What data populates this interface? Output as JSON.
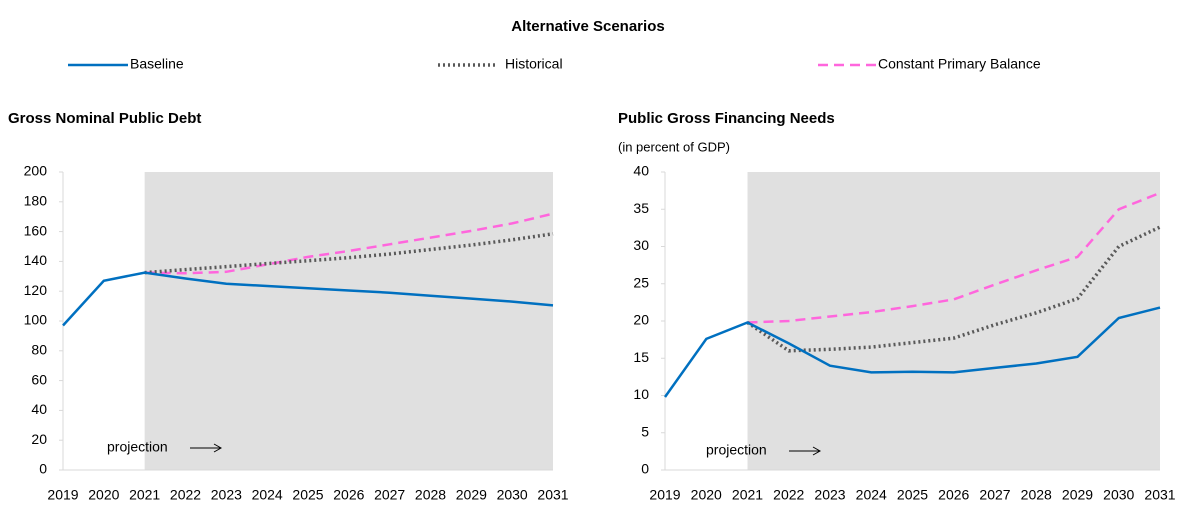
{
  "title": "Alternative Scenarios",
  "chart_data": [
    {
      "type": "line",
      "title": "Gross Nominal Public Debt",
      "x": [
        "2019",
        "2020",
        "2021",
        "2022",
        "2023",
        "2024",
        "2025",
        "2026",
        "2027",
        "2028",
        "2029",
        "2030",
        "2031"
      ],
      "projection_start": "2021",
      "annotation": "projection",
      "ylim": [
        0,
        200
      ],
      "yticks": [
        0,
        20,
        40,
        60,
        80,
        100,
        120,
        140,
        160,
        180,
        200
      ],
      "series": [
        {
          "name": "Baseline",
          "color": "#0070c0",
          "style": "solid",
          "values": [
            97,
            127,
            132.5,
            128.5,
            125,
            123.5,
            122,
            120.5,
            119,
            117,
            115,
            113,
            110.5
          ]
        },
        {
          "name": "Historical",
          "color": "#595959",
          "style": "dotted",
          "values": [
            null,
            null,
            132.5,
            134.5,
            136.5,
            138.5,
            140.5,
            142.5,
            145,
            148,
            151,
            154.5,
            158.5
          ]
        },
        {
          "name": "Constant Primary Balance",
          "color": "#ff66dd",
          "style": "dashed",
          "values": [
            null,
            null,
            132.5,
            132,
            133,
            138,
            143,
            147,
            151.5,
            156,
            160.5,
            165.5,
            172
          ]
        }
      ]
    },
    {
      "type": "line",
      "title": "Public Gross Financing Needs",
      "subtitle": "(in percent of GDP)",
      "x": [
        "2019",
        "2020",
        "2021",
        "2022",
        "2023",
        "2024",
        "2025",
        "2026",
        "2027",
        "2028",
        "2029",
        "2030",
        "2031"
      ],
      "projection_start": "2021",
      "annotation": "projection",
      "ylim": [
        0,
        40
      ],
      "yticks": [
        0,
        5,
        10,
        15,
        20,
        25,
        30,
        35,
        40
      ],
      "series": [
        {
          "name": "Baseline",
          "color": "#0070c0",
          "style": "solid",
          "values": [
            9.8,
            17.6,
            19.8,
            17,
            14,
            13.1,
            13.2,
            13.1,
            13.7,
            14.3,
            15.2,
            20.4,
            21.8
          ]
        },
        {
          "name": "Historical",
          "color": "#595959",
          "style": "dotted",
          "values": [
            null,
            null,
            19.8,
            16,
            16.2,
            16.5,
            17.1,
            17.7,
            19.5,
            21.1,
            23,
            30,
            32.6
          ]
        },
        {
          "name": "Constant Primary Balance",
          "color": "#ff66dd",
          "style": "dashed",
          "values": [
            null,
            null,
            19.8,
            20,
            20.6,
            21.2,
            22,
            22.9,
            24.9,
            26.8,
            28.6,
            35,
            37.2
          ]
        }
      ]
    }
  ]
}
